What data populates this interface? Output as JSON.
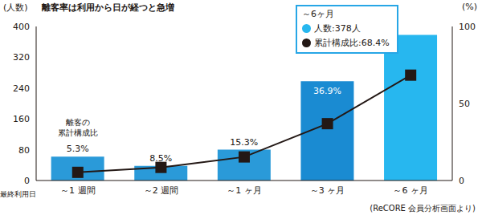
{
  "chart_data": {
    "type": "bar",
    "title": "離客率は利用から日が経つと急増",
    "xlabel": "最終利用日",
    "ylabel": "(人数)",
    "y2label": "(%)",
    "categories": [
      "～1 週間",
      "～2 週間",
      "～1 ヶ月",
      "～3 ヶ月",
      "～6 ヶ月"
    ],
    "series": [
      {
        "name": "人数:378人",
        "type": "bar",
        "colors": [
          "#2a9ad9",
          "#2a9ad9",
          "#2a9ad9",
          "#1a8bd2",
          "#27b7ef"
        ],
        "color": "#27b7ef",
        "values": [
          62,
          38,
          80,
          258,
          378
        ]
      },
      {
        "name": "累計構成比:68.4%",
        "type": "line",
        "axis": "y2",
        "color": "#231815",
        "marker": "square",
        "values": [
          5.3,
          8.5,
          15.3,
          36.9,
          68.4
        ],
        "value_labels": [
          "5.3%",
          "8.5%",
          "15.3%",
          "36.9%",
          null
        ]
      }
    ],
    "ylim": [
      0,
      400
    ],
    "yticks": [
      0,
      80,
      160,
      240,
      320,
      400
    ],
    "y2lim": [
      0,
      100
    ],
    "y2ticks": [
      0,
      50,
      100
    ],
    "grid": false,
    "data_labels": true,
    "legend": "upper right",
    "annotations": [
      "～6ヶ月",
      "離客の\n累計構成比",
      "(ReCORE 会員分析画面より)"
    ]
  }
}
